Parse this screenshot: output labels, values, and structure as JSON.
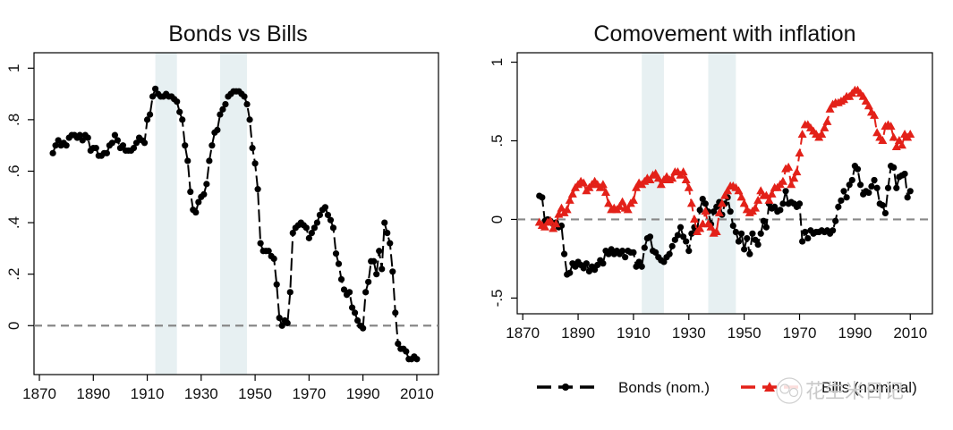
{
  "chart_data": [
    {
      "type": "line",
      "title": "Bonds vs Bills",
      "xlabel": "",
      "ylabel": "",
      "xlim": [
        1868,
        2018
      ],
      "ylim": [
        -0.19,
        1.06
      ],
      "xticks": [
        1870,
        1890,
        1910,
        1930,
        1950,
        1970,
        1990,
        2010
      ],
      "xtick_labels": [
        "1870",
        "1890",
        "1910",
        "1930",
        "1950",
        "1970",
        "1990",
        "2010"
      ],
      "yticks": [
        0,
        0.2,
        0.4,
        0.6,
        0.8,
        1
      ],
      "ytick_labels": [
        "0",
        ".2",
        ".4",
        ".6",
        ".8",
        "1"
      ],
      "reference_line": 0,
      "shaded_ranges": [
        [
          1913,
          1921
        ],
        [
          1937,
          1947
        ]
      ],
      "grid": false,
      "series": [
        {
          "name": "",
          "color": "#000000",
          "marker": "circle",
          "line_style": "long-dash",
          "x": [
            1875,
            1876,
            1877,
            1878,
            1879,
            1880,
            1881,
            1882,
            1883,
            1884,
            1885,
            1886,
            1887,
            1888,
            1889,
            1890,
            1891,
            1892,
            1893,
            1894,
            1895,
            1896,
            1897,
            1898,
            1899,
            1900,
            1901,
            1902,
            1903,
            1904,
            1905,
            1906,
            1907,
            1908,
            1909,
            1910,
            1911,
            1912,
            1913,
            1914,
            1915,
            1916,
            1917,
            1918,
            1919,
            1920,
            1921,
            1922,
            1923,
            1924,
            1925,
            1926,
            1927,
            1928,
            1929,
            1930,
            1931,
            1932,
            1933,
            1934,
            1935,
            1936,
            1937,
            1938,
            1939,
            1940,
            1941,
            1942,
            1943,
            1944,
            1945,
            1946,
            1947,
            1948,
            1949,
            1950,
            1951,
            1952,
            1953,
            1954,
            1955,
            1956,
            1957,
            1958,
            1959,
            1960,
            1961,
            1962,
            1963,
            1964,
            1965,
            1966,
            1967,
            1968,
            1969,
            1970,
            1971,
            1972,
            1973,
            1974,
            1975,
            1976,
            1977,
            1978,
            1979,
            1980,
            1981,
            1982,
            1983,
            1984,
            1985,
            1986,
            1987,
            1988,
            1989,
            1990,
            1991,
            1992,
            1993,
            1994,
            1995,
            1996,
            1997,
            1998,
            1999,
            2000,
            2001,
            2002,
            2003,
            2004,
            2005,
            2006,
            2007,
            2008,
            2009,
            2010
          ],
          "y": [
            0.67,
            0.7,
            0.72,
            0.7,
            0.71,
            0.7,
            0.73,
            0.74,
            0.74,
            0.73,
            0.74,
            0.72,
            0.74,
            0.73,
            0.68,
            0.69,
            0.69,
            0.66,
            0.66,
            0.67,
            0.67,
            0.7,
            0.71,
            0.74,
            0.72,
            0.69,
            0.7,
            0.68,
            0.68,
            0.68,
            0.69,
            0.71,
            0.73,
            0.72,
            0.71,
            0.8,
            0.82,
            0.89,
            0.92,
            0.9,
            0.89,
            0.89,
            0.9,
            0.89,
            0.89,
            0.88,
            0.87,
            0.83,
            0.8,
            0.7,
            0.64,
            0.52,
            0.45,
            0.44,
            0.48,
            0.5,
            0.51,
            0.55,
            0.64,
            0.7,
            0.75,
            0.76,
            0.82,
            0.84,
            0.86,
            0.89,
            0.9,
            0.91,
            0.91,
            0.91,
            0.9,
            0.89,
            0.86,
            0.8,
            0.69,
            0.63,
            0.53,
            0.32,
            0.29,
            0.29,
            0.29,
            0.27,
            0.26,
            0.16,
            0.03,
            0.0,
            0.02,
            0.01,
            0.13,
            0.36,
            0.38,
            0.39,
            0.4,
            0.39,
            0.38,
            0.34,
            0.36,
            0.38,
            0.4,
            0.43,
            0.45,
            0.46,
            0.43,
            0.41,
            0.38,
            0.28,
            0.24,
            0.18,
            0.14,
            0.12,
            0.13,
            0.07,
            0.05,
            0.02,
            0.0,
            -0.01,
            0.13,
            0.17,
            0.25,
            0.25,
            0.2,
            0.29,
            0.22,
            0.4,
            0.36,
            0.32,
            0.21,
            0.05,
            -0.07,
            -0.09,
            -0.09,
            -0.1,
            -0.13,
            -0.13,
            -0.12,
            -0.13
          ]
        }
      ]
    },
    {
      "type": "line",
      "title": "Comovement with inflation",
      "xlabel": "",
      "ylabel": "",
      "xlim": [
        1868,
        2018
      ],
      "ylim": [
        -0.6,
        1.06
      ],
      "xticks": [
        1870,
        1890,
        1910,
        1930,
        1950,
        1970,
        1990,
        2010
      ],
      "xtick_labels": [
        "1870",
        "1890",
        "1910",
        "1930",
        "1950",
        "1970",
        "1990",
        "2010"
      ],
      "yticks": [
        -0.5,
        0,
        0.5,
        1
      ],
      "ytick_labels": [
        "-.5",
        "0",
        ".5",
        "1"
      ],
      "reference_line": 0,
      "shaded_ranges": [
        [
          1913,
          1921
        ],
        [
          1937,
          1947
        ]
      ],
      "grid": false,
      "legend_position": "bottom",
      "series": [
        {
          "name": "Bonds (nom.)",
          "color": "#000000",
          "marker": "circle",
          "line_style": "long-dash",
          "x": [
            1876,
            1877,
            1878,
            1879,
            1880,
            1881,
            1882,
            1883,
            1884,
            1885,
            1886,
            1887,
            1888,
            1889,
            1890,
            1891,
            1892,
            1893,
            1894,
            1895,
            1896,
            1897,
            1898,
            1899,
            1900,
            1901,
            1902,
            1903,
            1904,
            1905,
            1906,
            1907,
            1908,
            1909,
            1910,
            1911,
            1912,
            1913,
            1914,
            1915,
            1916,
            1917,
            1918,
            1919,
            1920,
            1921,
            1922,
            1923,
            1924,
            1925,
            1926,
            1927,
            1928,
            1929,
            1930,
            1931,
            1932,
            1933,
            1934,
            1935,
            1936,
            1937,
            1938,
            1939,
            1940,
            1941,
            1942,
            1943,
            1944,
            1945,
            1946,
            1947,
            1948,
            1949,
            1950,
            1951,
            1952,
            1953,
            1954,
            1955,
            1956,
            1957,
            1958,
            1959,
            1960,
            1961,
            1962,
            1963,
            1964,
            1965,
            1966,
            1967,
            1968,
            1969,
            1970,
            1971,
            1972,
            1973,
            1974,
            1975,
            1976,
            1977,
            1978,
            1979,
            1980,
            1981,
            1982,
            1983,
            1984,
            1985,
            1986,
            1987,
            1988,
            1989,
            1990,
            1991,
            1992,
            1993,
            1994,
            1995,
            1996,
            1997,
            1998,
            1999,
            2000,
            2001,
            2002,
            2003,
            2004,
            2005,
            2006,
            2007,
            2008,
            2009,
            2010
          ],
          "y": [
            0.15,
            0.14,
            -0.01,
            0.0,
            -0.01,
            -0.03,
            -0.02,
            -0.05,
            -0.04,
            -0.22,
            -0.35,
            -0.34,
            -0.28,
            -0.3,
            -0.27,
            -0.29,
            -0.31,
            -0.28,
            -0.33,
            -0.3,
            -0.32,
            -0.29,
            -0.26,
            -0.28,
            -0.2,
            -0.22,
            -0.19,
            -0.22,
            -0.2,
            -0.22,
            -0.2,
            -0.24,
            -0.2,
            -0.21,
            -0.21,
            -0.3,
            -0.27,
            -0.3,
            -0.18,
            -0.12,
            -0.11,
            -0.2,
            -0.21,
            -0.24,
            -0.26,
            -0.27,
            -0.24,
            -0.22,
            -0.17,
            -0.13,
            -0.1,
            -0.05,
            -0.11,
            -0.14,
            -0.2,
            -0.09,
            -0.05,
            -0.07,
            0.06,
            0.13,
            0.1,
            0.05,
            -0.03,
            0.05,
            0.08,
            0.11,
            0.03,
            0.1,
            0.14,
            0.05,
            -0.04,
            -0.08,
            -0.14,
            -0.09,
            -0.19,
            -0.12,
            -0.22,
            -0.09,
            -0.13,
            -0.16,
            -0.09,
            -0.01,
            -0.05,
            0.1,
            0.07,
            0.08,
            0.05,
            0.06,
            0.1,
            0.18,
            0.1,
            0.11,
            0.1,
            0.08,
            0.1,
            -0.14,
            -0.08,
            -0.12,
            -0.07,
            -0.09,
            -0.08,
            -0.08,
            -0.07,
            -0.08,
            -0.07,
            -0.09,
            -0.07,
            -0.01,
            0.08,
            0.12,
            0.18,
            0.14,
            0.22,
            0.25,
            0.34,
            0.32,
            0.22,
            0.16,
            0.18,
            0.17,
            0.21,
            0.25,
            0.2,
            0.1,
            0.09,
            0.04,
            0.2,
            0.34,
            0.33,
            0.2,
            0.27,
            0.28,
            0.29,
            0.14,
            0.18
          ]
        },
        {
          "name": "Bills (nominal)",
          "color": "#e32119",
          "marker": "triangle",
          "line_style": "long-dash",
          "x": [
            1876,
            1877,
            1878,
            1879,
            1880,
            1881,
            1882,
            1883,
            1884,
            1885,
            1886,
            1887,
            1888,
            1889,
            1890,
            1891,
            1892,
            1893,
            1894,
            1895,
            1896,
            1897,
            1898,
            1899,
            1900,
            1901,
            1902,
            1903,
            1904,
            1905,
            1906,
            1907,
            1908,
            1909,
            1910,
            1911,
            1912,
            1913,
            1914,
            1915,
            1916,
            1917,
            1918,
            1919,
            1920,
            1921,
            1922,
            1923,
            1924,
            1925,
            1926,
            1927,
            1928,
            1929,
            1930,
            1931,
            1932,
            1933,
            1934,
            1935,
            1936,
            1937,
            1938,
            1939,
            1940,
            1941,
            1942,
            1943,
            1944,
            1945,
            1946,
            1947,
            1948,
            1949,
            1950,
            1951,
            1952,
            1953,
            1954,
            1955,
            1956,
            1957,
            1958,
            1959,
            1960,
            1961,
            1962,
            1963,
            1964,
            1965,
            1966,
            1967,
            1968,
            1969,
            1970,
            1971,
            1972,
            1973,
            1974,
            1975,
            1976,
            1977,
            1978,
            1979,
            1980,
            1981,
            1982,
            1983,
            1984,
            1985,
            1986,
            1987,
            1988,
            1989,
            1990,
            1991,
            1992,
            1993,
            1994,
            1995,
            1996,
            1997,
            1998,
            1999,
            2000,
            2001,
            2002,
            2003,
            2004,
            2005,
            2006,
            2007,
            2008,
            2009,
            2010
          ],
          "y": [
            -0.02,
            -0.04,
            -0.05,
            -0.02,
            -0.01,
            -0.06,
            -0.03,
            0.03,
            0.07,
            0.04,
            0.06,
            0.12,
            0.16,
            0.2,
            0.22,
            0.24,
            0.23,
            0.18,
            0.2,
            0.22,
            0.24,
            0.22,
            0.2,
            0.22,
            0.17,
            0.1,
            0.06,
            0.07,
            0.06,
            0.08,
            0.11,
            0.07,
            0.06,
            0.1,
            0.12,
            0.2,
            0.23,
            0.22,
            0.24,
            0.26,
            0.25,
            0.28,
            0.29,
            0.26,
            0.22,
            0.25,
            0.27,
            0.25,
            0.26,
            0.3,
            0.3,
            0.28,
            0.3,
            0.25,
            0.2,
            0.1,
            0.0,
            -0.08,
            -0.06,
            -0.03,
            0.05,
            -0.03,
            -0.05,
            -0.09,
            -0.08,
            0.04,
            0.1,
            0.15,
            0.18,
            0.21,
            0.21,
            0.2,
            0.18,
            0.14,
            0.1,
            0.06,
            0.04,
            0.05,
            0.07,
            0.12,
            0.18,
            0.15,
            0.15,
            0.12,
            0.16,
            0.2,
            0.2,
            0.22,
            0.24,
            0.32,
            0.33,
            0.22,
            0.26,
            0.3,
            0.42,
            0.54,
            0.6,
            0.6,
            0.58,
            0.56,
            0.54,
            0.52,
            0.54,
            0.58,
            0.62,
            0.7,
            0.73,
            0.74,
            0.74,
            0.75,
            0.76,
            0.78,
            0.78,
            0.8,
            0.82,
            0.82,
            0.8,
            0.78,
            0.75,
            0.72,
            0.68,
            0.66,
            0.55,
            0.52,
            0.5,
            0.59,
            0.6,
            0.59,
            0.52,
            0.46,
            0.5,
            0.47,
            0.54,
            0.52,
            0.54
          ]
        }
      ],
      "legend": [
        "Bonds (nom.)",
        "Bills (nominal)"
      ]
    }
  ],
  "watermark": "花生米日记"
}
